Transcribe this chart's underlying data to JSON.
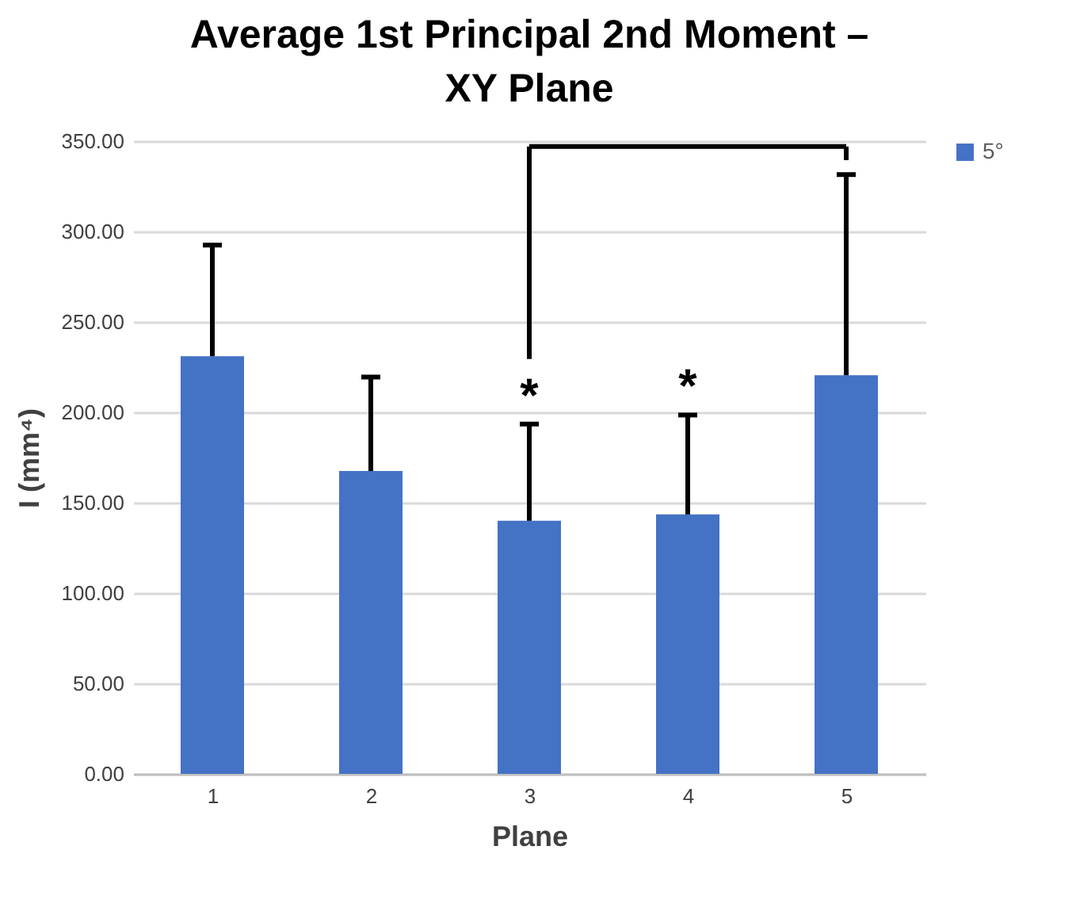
{
  "chart_data": {
    "type": "bar",
    "title": "Average 1st Principal 2nd Moment –\nXY Plane",
    "xlabel": "Plane",
    "ylabel": "I (mm⁴)",
    "categories": [
      "1",
      "2",
      "3",
      "4",
      "5"
    ],
    "series": [
      {
        "name": "5°",
        "color": "#4472c4",
        "values": [
          231,
          167.5,
          140,
          143.5,
          220.5
        ],
        "errors": [
          [
            231,
            292.5
          ],
          [
            167.5,
            219.5
          ],
          [
            140,
            193.5
          ],
          [
            143.5,
            198.5
          ],
          [
            220.5,
            331.5
          ]
        ]
      }
    ],
    "annotations": [
      {
        "text": "*",
        "x": "3",
        "y": 193.5
      },
      {
        "text": "*",
        "x": "4",
        "y": 198.5
      }
    ],
    "ylim": [
      0,
      350
    ],
    "yticks": [
      {
        "value": 0,
        "label": "0.00"
      },
      {
        "value": 50,
        "label": "50.00"
      },
      {
        "value": 100,
        "label": "100.00"
      },
      {
        "value": 150,
        "label": "150.00"
      },
      {
        "value": 200,
        "label": "200.00"
      },
      {
        "value": 250,
        "label": "250.00"
      },
      {
        "value": 300,
        "label": "300.00"
      },
      {
        "value": 350,
        "label": "350.00"
      }
    ],
    "grid": "y",
    "legend": "right"
  }
}
